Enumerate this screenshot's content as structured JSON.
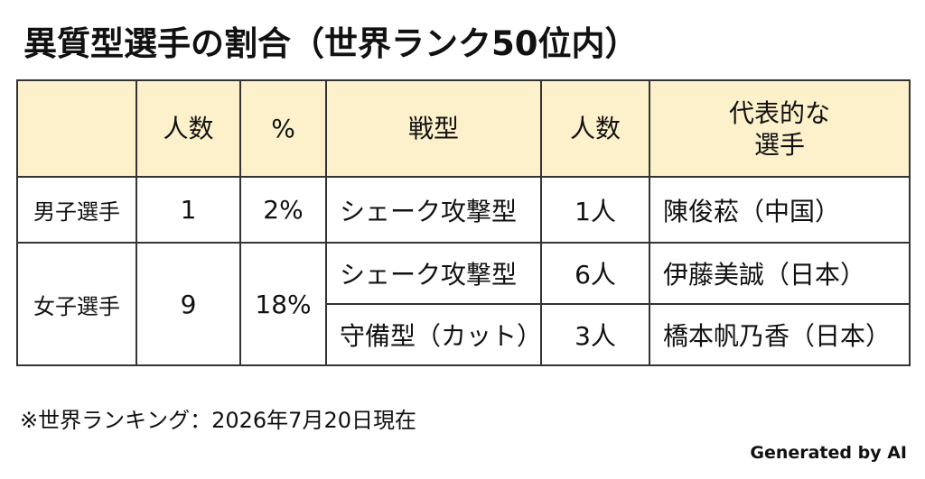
{
  "title": "異質型選手の割合（世界ランク50位内）",
  "table": {
    "header": [
      "人数",
      "%",
      "戦型",
      "人数",
      "代表的な\n選手"
    ],
    "groups": [
      {
        "group": "男子選手",
        "count": "1",
        "percent": "2%",
        "entries": [
          {
            "style": "シェーク攻撃型",
            "players": "1人",
            "representative": "陳俊菘（中国）"
          }
        ]
      },
      {
        "group": "女子選手",
        "count": "9",
        "percent": "18%",
        "entries": [
          {
            "style": "シェーク攻撃型",
            "players": "6人",
            "representative": "伊藤美誠（日本）"
          },
          {
            "style": "守備型（カット）",
            "players": "3人",
            "representative": "橋本帆乃香（日本）"
          }
        ]
      }
    ]
  },
  "note": "※世界ランキング：2026年7月20日現在",
  "credit": "Generated by AI"
}
